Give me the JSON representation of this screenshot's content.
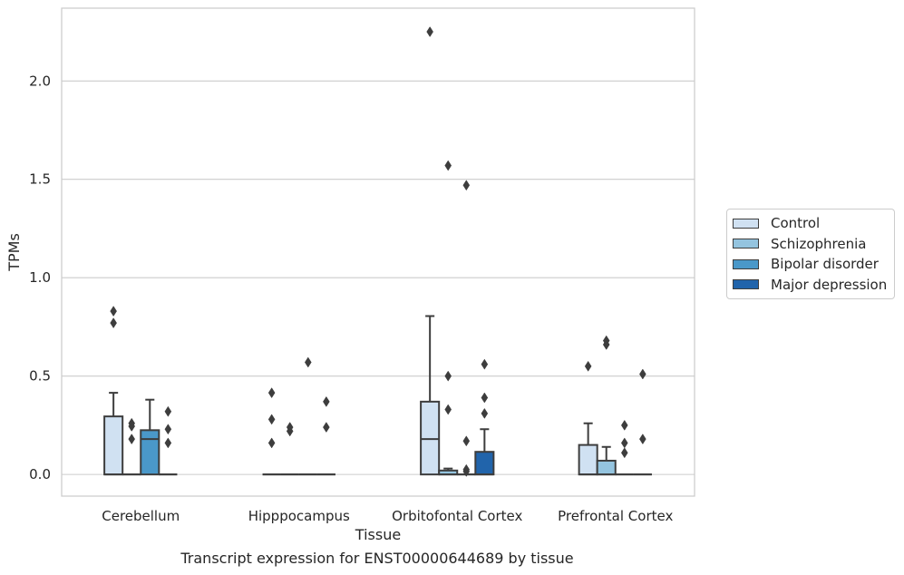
{
  "chart_data": {
    "type": "box",
    "title": "",
    "xlabel": "Tissue",
    "ylabel": "TPMs",
    "ylim": [
      -0.11,
      2.37
    ],
    "yticks": [
      0.0,
      0.5,
      1.0,
      1.5,
      2.0
    ],
    "ytick_labels": [
      "0.0",
      "0.5",
      "1.0",
      "1.5",
      "2.0"
    ],
    "grid": "horizontal",
    "legend_position": "right",
    "categories": [
      "Cerebellum",
      "Hipppocampus",
      "Orbitofontal Cortex",
      "Prefrontal Cortex"
    ],
    "series": [
      {
        "name": "Control",
        "color": "#d0e1f2",
        "boxes": [
          {
            "q1": 0.0,
            "median": 0.0,
            "q3": 0.295,
            "whisker_low": 0.0,
            "whisker_high": 0.415,
            "outliers": [
              0.77,
              0.83
            ]
          },
          {
            "q1": 0.0,
            "median": 0.0,
            "q3": 0.0,
            "whisker_low": 0.0,
            "whisker_high": 0.0,
            "outliers": [
              0.16,
              0.28,
              0.415
            ]
          },
          {
            "q1": 0.0,
            "median": 0.18,
            "q3": 0.37,
            "whisker_low": 0.0,
            "whisker_high": 0.805,
            "outliers": [
              2.25
            ]
          },
          {
            "q1": 0.0,
            "median": 0.0,
            "q3": 0.15,
            "whisker_low": 0.0,
            "whisker_high": 0.26,
            "outliers": [
              0.55
            ]
          }
        ]
      },
      {
        "name": "Schizophrenia",
        "color": "#94c4df",
        "boxes": [
          {
            "q1": 0.0,
            "median": 0.0,
            "q3": 0.0,
            "whisker_low": 0.0,
            "whisker_high": 0.0,
            "outliers": [
              0.18,
              0.245,
              0.26
            ]
          },
          {
            "q1": 0.0,
            "median": 0.0,
            "q3": 0.0,
            "whisker_low": 0.0,
            "whisker_high": 0.0,
            "outliers": [
              0.22,
              0.24
            ]
          },
          {
            "q1": 0.0,
            "median": 0.0,
            "q3": 0.02,
            "whisker_low": 0.0,
            "whisker_high": 0.03,
            "outliers": [
              0.33,
              0.5,
              1.57
            ]
          },
          {
            "q1": 0.0,
            "median": 0.0,
            "q3": 0.07,
            "whisker_low": 0.0,
            "whisker_high": 0.14,
            "outliers": [
              0.66,
              0.68
            ]
          }
        ]
      },
      {
        "name": "Bipolar disorder",
        "color": "#4a98c9",
        "boxes": [
          {
            "q1": 0.0,
            "median": 0.18,
            "q3": 0.225,
            "whisker_low": 0.0,
            "whisker_high": 0.38,
            "outliers": []
          },
          {
            "q1": 0.0,
            "median": 0.0,
            "q3": 0.0,
            "whisker_low": 0.0,
            "whisker_high": 0.0,
            "outliers": [
              0.57
            ]
          },
          {
            "q1": 0.0,
            "median": 0.0,
            "q3": 0.0,
            "whisker_low": 0.0,
            "whisker_high": 0.0,
            "outliers": [
              0.015,
              0.025,
              0.17,
              1.47
            ]
          },
          {
            "q1": 0.0,
            "median": 0.0,
            "q3": 0.0,
            "whisker_low": 0.0,
            "whisker_high": 0.0,
            "outliers": [
              0.11,
              0.16,
              0.25
            ]
          }
        ]
      },
      {
        "name": "Major depression",
        "color": "#2164ab",
        "boxes": [
          {
            "q1": 0.0,
            "median": 0.0,
            "q3": 0.0,
            "whisker_low": 0.0,
            "whisker_high": 0.0,
            "outliers": [
              0.16,
              0.23,
              0.32
            ]
          },
          {
            "q1": 0.0,
            "median": 0.0,
            "q3": 0.0,
            "whisker_low": 0.0,
            "whisker_high": 0.0,
            "outliers": [
              0.24,
              0.37
            ]
          },
          {
            "q1": 0.0,
            "median": 0.0,
            "q3": 0.115,
            "whisker_low": 0.0,
            "whisker_high": 0.23,
            "outliers": [
              0.31,
              0.39,
              0.56
            ]
          },
          {
            "q1": 0.0,
            "median": 0.0,
            "q3": 0.0,
            "whisker_low": 0.0,
            "whisker_high": 0.0,
            "outliers": [
              0.18,
              0.51
            ]
          }
        ]
      }
    ]
  },
  "caption": "Transcript expression for ENST00000644689 by tissue"
}
